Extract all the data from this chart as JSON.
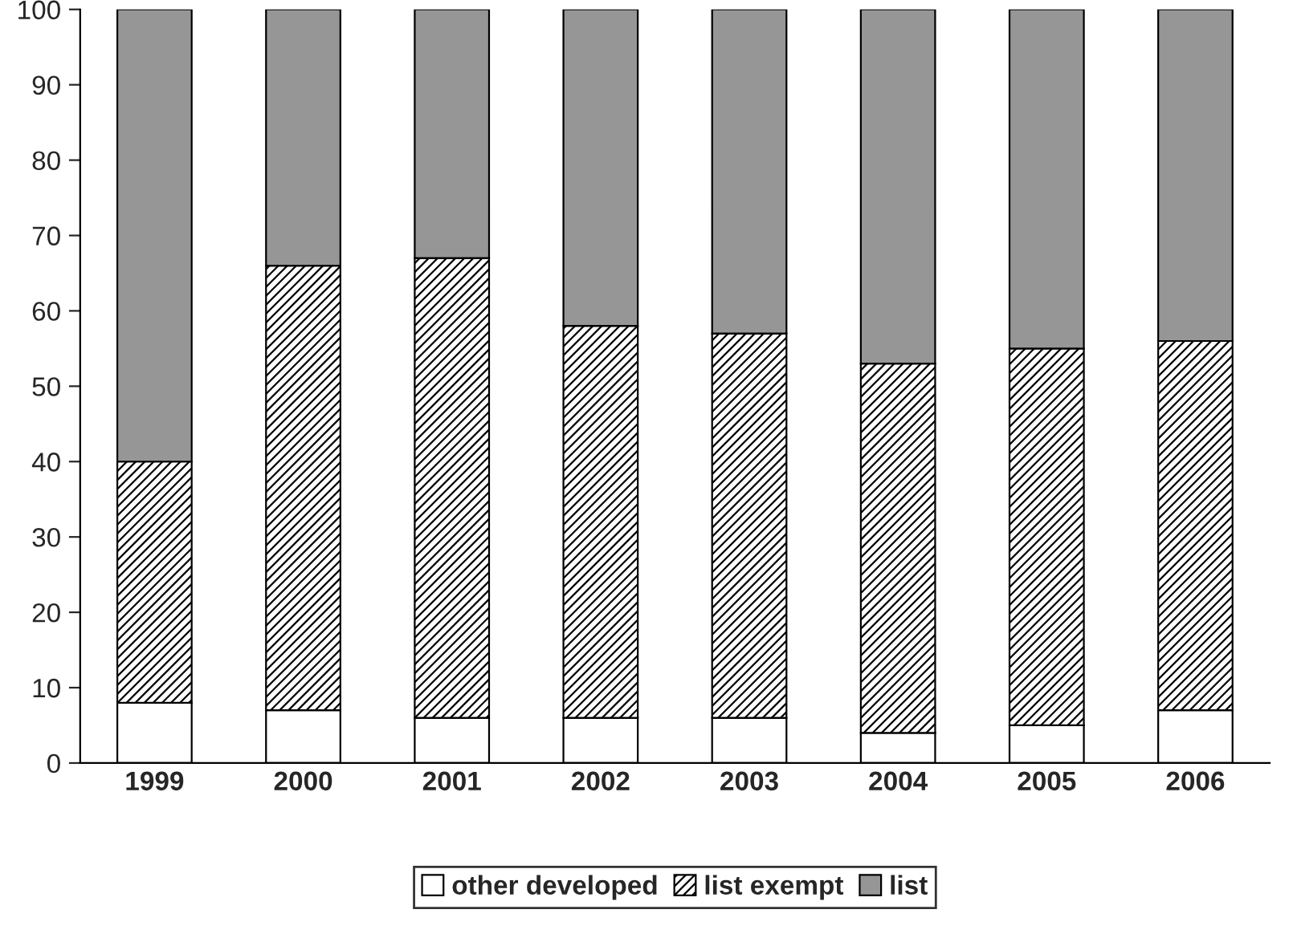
{
  "chart_data": {
    "type": "bar",
    "stacked": true,
    "categories": [
      "1999",
      "2000",
      "2001",
      "2002",
      "2003",
      "2004",
      "2005",
      "2006"
    ],
    "series": [
      {
        "name": "other developed",
        "color": "#ffffff",
        "values": [
          8,
          7,
          6,
          6,
          6,
          4,
          5,
          7
        ]
      },
      {
        "name": "list exempt",
        "color": "#000000",
        "values": [
          32,
          59,
          61,
          52,
          51,
          49,
          50,
          49
        ]
      },
      {
        "name": "list",
        "color": "#969696",
        "values": [
          60,
          34,
          33,
          42,
          43,
          47,
          45,
          44
        ]
      }
    ],
    "ylim": [
      0,
      100
    ],
    "yticks": [
      0,
      10,
      20,
      30,
      40,
      50,
      60,
      70,
      80,
      90,
      100
    ],
    "grid": false,
    "legend": "bottom"
  }
}
